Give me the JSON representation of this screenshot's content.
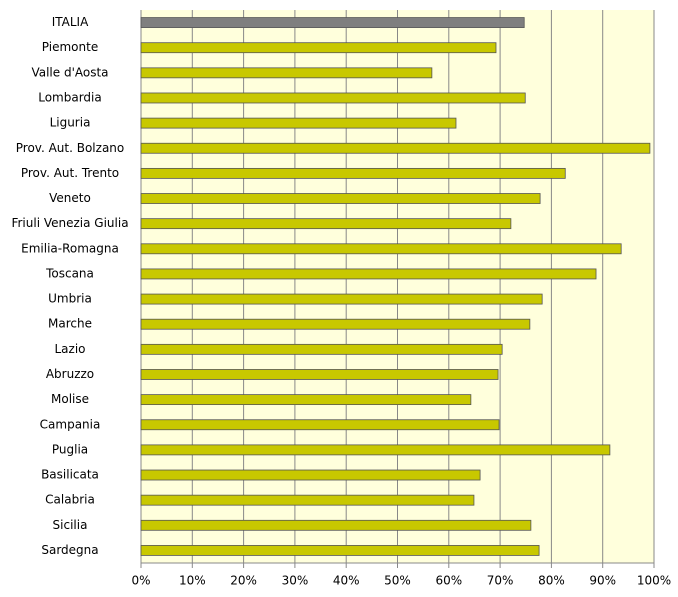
{
  "chart_data": {
    "type": "bar",
    "orientation": "horizontal",
    "categories": [
      "ITALIA",
      "Piemonte",
      "Valle d'Aosta",
      "Lombardia",
      "Liguria",
      "Prov. Aut. Bolzano",
      "Prov. Aut. Trento",
      "Veneto",
      "Friuli Venezia Giulia",
      "Emilia-Romagna",
      "Toscana",
      "Umbria",
      "Marche",
      "Lazio",
      "Abruzzo",
      "Molise",
      "Campania",
      "Puglia",
      "Basilicata",
      "Calabria",
      "Sicilia",
      "Sardegna"
    ],
    "values": [
      74.7,
      69.2,
      56.7,
      74.9,
      61.4,
      99.2,
      82.7,
      77.8,
      72.1,
      93.6,
      88.7,
      78.2,
      75.8,
      70.4,
      69.6,
      64.3,
      69.8,
      91.4,
      66.1,
      64.9,
      76.0,
      77.6
    ],
    "colors": [
      "#7f7f7f",
      "#c8c800",
      "#c8c800",
      "#c8c800",
      "#c8c800",
      "#c8c800",
      "#c8c800",
      "#c8c800",
      "#c8c800",
      "#c8c800",
      "#c8c800",
      "#c8c800",
      "#c8c800",
      "#c8c800",
      "#c8c800",
      "#c8c800",
      "#c8c800",
      "#c8c800",
      "#c8c800",
      "#c8c800",
      "#c8c800",
      "#c8c800"
    ],
    "xlim": [
      0,
      100
    ],
    "xticks": [
      {
        "value": 0,
        "label": "0%"
      },
      {
        "value": 10,
        "label": "10%"
      },
      {
        "value": 20,
        "label": "20%"
      },
      {
        "value": 30,
        "label": "30%"
      },
      {
        "value": 40,
        "label": "40%"
      },
      {
        "value": 50,
        "label": "50%"
      },
      {
        "value": 60,
        "label": "60%"
      },
      {
        "value": 70,
        "label": "70%"
      },
      {
        "value": 80,
        "label": "80%"
      },
      {
        "value": 90,
        "label": "90%"
      },
      {
        "value": 100,
        "label": "100%"
      }
    ],
    "grid": true
  }
}
